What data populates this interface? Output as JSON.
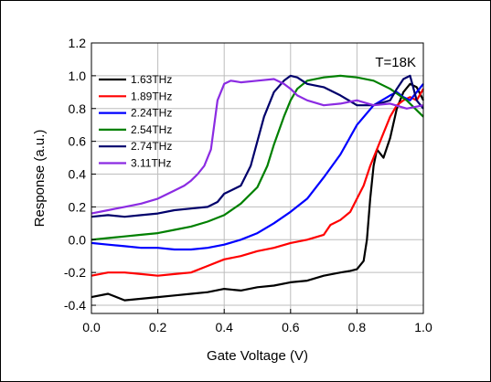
{
  "chart_data": {
    "type": "line",
    "title": "",
    "xlabel": "Gate Voltage (V)",
    "ylabel": "Response (a.u.)",
    "annotation": "T=18K",
    "xlim": [
      0.0,
      1.0
    ],
    "ylim": [
      -0.45,
      1.2
    ],
    "xticks": [
      "0.0",
      "0.2",
      "0.4",
      "0.6",
      "0.8",
      "1.0"
    ],
    "yticks": [
      "-0.4",
      "-0.2",
      "0.0",
      "0.2",
      "0.4",
      "0.6",
      "0.8",
      "1.0",
      "1.2"
    ],
    "grid": true,
    "legend_position": "top-left",
    "series": [
      {
        "name": "1.63THz",
        "color": "#000000",
        "x": [
          0.0,
          0.05,
          0.1,
          0.15,
          0.2,
          0.25,
          0.3,
          0.35,
          0.4,
          0.45,
          0.5,
          0.55,
          0.6,
          0.65,
          0.7,
          0.75,
          0.78,
          0.8,
          0.82,
          0.83,
          0.84,
          0.85,
          0.86,
          0.88,
          0.9,
          0.92,
          0.94,
          0.96,
          0.98,
          1.0
        ],
        "y": [
          -0.35,
          -0.33,
          -0.37,
          -0.36,
          -0.35,
          -0.34,
          -0.33,
          -0.32,
          -0.3,
          -0.31,
          -0.29,
          -0.28,
          -0.26,
          -0.25,
          -0.22,
          -0.2,
          -0.19,
          -0.18,
          -0.13,
          0.0,
          0.25,
          0.45,
          0.55,
          0.5,
          0.62,
          0.8,
          0.9,
          0.95,
          0.93,
          0.85
        ]
      },
      {
        "name": "1.89THz",
        "color": "#ff0000",
        "x": [
          0.0,
          0.05,
          0.1,
          0.15,
          0.2,
          0.25,
          0.3,
          0.35,
          0.4,
          0.45,
          0.5,
          0.55,
          0.6,
          0.65,
          0.7,
          0.72,
          0.75,
          0.78,
          0.8,
          0.82,
          0.84,
          0.86,
          0.88,
          0.9,
          0.92,
          0.94,
          0.96,
          0.98,
          1.0
        ],
        "y": [
          -0.22,
          -0.2,
          -0.2,
          -0.21,
          -0.22,
          -0.21,
          -0.2,
          -0.16,
          -0.12,
          -0.1,
          -0.07,
          -0.05,
          -0.02,
          0.0,
          0.03,
          0.09,
          0.12,
          0.17,
          0.25,
          0.33,
          0.45,
          0.55,
          0.65,
          0.75,
          0.82,
          0.85,
          0.87,
          0.85,
          0.92
        ]
      },
      {
        "name": "2.24THz",
        "color": "#0000ff",
        "x": [
          0.0,
          0.05,
          0.1,
          0.15,
          0.2,
          0.25,
          0.3,
          0.35,
          0.4,
          0.45,
          0.5,
          0.55,
          0.6,
          0.65,
          0.7,
          0.75,
          0.8,
          0.85,
          0.9,
          0.92,
          0.94,
          0.96,
          0.98,
          1.0
        ],
        "y": [
          -0.02,
          -0.03,
          -0.04,
          -0.05,
          -0.05,
          -0.06,
          -0.06,
          -0.05,
          -0.03,
          0.0,
          0.04,
          0.1,
          0.17,
          0.25,
          0.38,
          0.52,
          0.7,
          0.82,
          0.88,
          0.9,
          0.87,
          0.85,
          0.9,
          0.95
        ]
      },
      {
        "name": "2.54THz",
        "color": "#008000",
        "x": [
          0.0,
          0.05,
          0.1,
          0.15,
          0.2,
          0.25,
          0.3,
          0.35,
          0.4,
          0.45,
          0.5,
          0.53,
          0.55,
          0.58,
          0.6,
          0.62,
          0.65,
          0.7,
          0.75,
          0.8,
          0.85,
          0.9,
          0.95,
          1.0
        ],
        "y": [
          0.0,
          0.01,
          0.02,
          0.03,
          0.04,
          0.06,
          0.08,
          0.11,
          0.15,
          0.22,
          0.32,
          0.45,
          0.58,
          0.75,
          0.85,
          0.92,
          0.97,
          0.99,
          1.0,
          0.99,
          0.97,
          0.92,
          0.85,
          0.75
        ]
      },
      {
        "name": "2.74THz",
        "color": "#00006b",
        "x": [
          0.0,
          0.05,
          0.1,
          0.15,
          0.2,
          0.25,
          0.3,
          0.35,
          0.38,
          0.4,
          0.42,
          0.45,
          0.48,
          0.5,
          0.52,
          0.55,
          0.58,
          0.6,
          0.62,
          0.65,
          0.7,
          0.75,
          0.8,
          0.85,
          0.9,
          0.92,
          0.94,
          0.96,
          0.98,
          1.0
        ],
        "y": [
          0.14,
          0.15,
          0.14,
          0.15,
          0.16,
          0.18,
          0.19,
          0.2,
          0.23,
          0.28,
          0.3,
          0.33,
          0.45,
          0.6,
          0.75,
          0.9,
          0.97,
          1.0,
          0.99,
          0.95,
          0.93,
          0.88,
          0.82,
          0.82,
          0.85,
          0.92,
          0.98,
          1.0,
          0.85,
          0.8
        ]
      },
      {
        "name": "3.11THz",
        "color": "#8b2be2",
        "x": [
          0.0,
          0.05,
          0.1,
          0.15,
          0.2,
          0.25,
          0.28,
          0.3,
          0.32,
          0.34,
          0.36,
          0.37,
          0.38,
          0.4,
          0.42,
          0.45,
          0.5,
          0.55,
          0.58,
          0.6,
          0.62,
          0.65,
          0.7,
          0.75,
          0.8,
          0.85,
          0.9,
          0.95,
          1.0
        ],
        "y": [
          0.16,
          0.18,
          0.2,
          0.22,
          0.25,
          0.3,
          0.33,
          0.36,
          0.4,
          0.45,
          0.55,
          0.7,
          0.85,
          0.95,
          0.97,
          0.96,
          0.97,
          0.98,
          0.95,
          0.92,
          0.88,
          0.85,
          0.82,
          0.83,
          0.85,
          0.82,
          0.83,
          0.8,
          0.82
        ]
      }
    ]
  }
}
